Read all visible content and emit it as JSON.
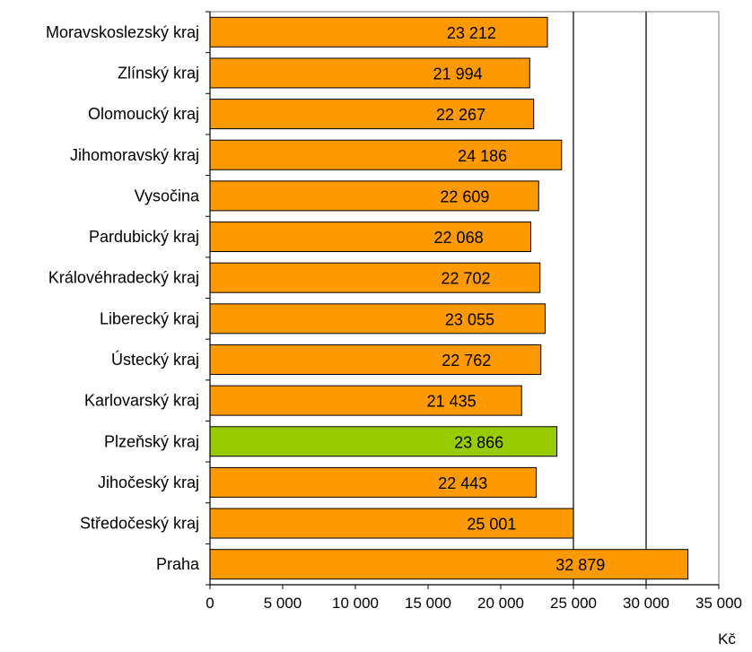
{
  "chart_data": {
    "type": "bar",
    "orientation": "horizontal",
    "categories": [
      "Moravskoslezský kraj",
      "Zlínský kraj",
      "Olomoucký kraj",
      "Jihomoravský kraj",
      "Vysočina",
      "Pardubický kraj",
      "Královéhradecký kraj",
      "Liberecký kraj",
      "Ústecký kraj",
      "Karlovarský kraj",
      "Plzeňský kraj",
      "Jihočeský kraj",
      "Středočeský kraj",
      "Praha"
    ],
    "values": [
      23212,
      21994,
      22267,
      24186,
      22609,
      22068,
      22702,
      23055,
      22762,
      21435,
      23866,
      22443,
      25001,
      32879
    ],
    "value_labels": [
      "23 212",
      "21 994",
      "22 267",
      "24 186",
      "22 609",
      "22 068",
      "22 702",
      "23 055",
      "22 762",
      "21 435",
      "23 866",
      "22 443",
      "25 001",
      "32 879"
    ],
    "highlight_category": "Plzeňský kraj",
    "colors": {
      "bar": "#FF9900",
      "highlight": "#99CC00",
      "outline": "#000000",
      "gridline": "#000000"
    },
    "xlim": [
      0,
      35000
    ],
    "xticks": [
      0,
      5000,
      10000,
      15000,
      20000,
      25000,
      30000,
      35000
    ],
    "xtick_labels": [
      "0",
      "5 000",
      "10 000",
      "15 000",
      "20 000",
      "25 000",
      "30 000",
      "35 000"
    ],
    "gridlines_at": [
      25000,
      30000
    ],
    "xlabel": "Kč",
    "title": "",
    "ylabel": ""
  }
}
